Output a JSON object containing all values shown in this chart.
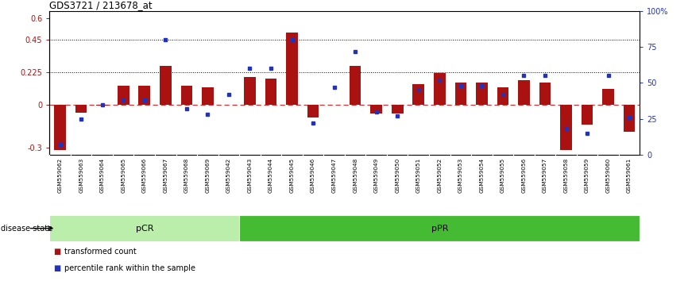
{
  "title": "GDS3721 / 213678_at",
  "samples": [
    "GSM559062",
    "GSM559063",
    "GSM559064",
    "GSM559065",
    "GSM559066",
    "GSM559067",
    "GSM559068",
    "GSM559069",
    "GSM559042",
    "GSM559043",
    "GSM559044",
    "GSM559045",
    "GSM559046",
    "GSM559047",
    "GSM559048",
    "GSM559049",
    "GSM559050",
    "GSM559051",
    "GSM559052",
    "GSM559053",
    "GSM559054",
    "GSM559055",
    "GSM559056",
    "GSM559057",
    "GSM559058",
    "GSM559059",
    "GSM559060",
    "GSM559061"
  ],
  "bar_values": [
    -0.32,
    -0.06,
    -0.01,
    0.13,
    0.13,
    0.27,
    0.13,
    0.12,
    -0.005,
    0.19,
    0.18,
    0.5,
    -0.09,
    -0.005,
    0.27,
    -0.065,
    -0.065,
    0.14,
    0.22,
    0.15,
    0.15,
    0.12,
    0.17,
    0.15,
    -0.32,
    -0.14,
    0.11,
    -0.19
  ],
  "dot_values": [
    7,
    25,
    35,
    38,
    38,
    80,
    32,
    28,
    42,
    60,
    60,
    80,
    22,
    47,
    72,
    30,
    27,
    45,
    52,
    48,
    48,
    42,
    55,
    55,
    18,
    15,
    55,
    26
  ],
  "pCR_count": 9,
  "pPR_count": 19,
  "ylim_left": [
    -0.35,
    0.65
  ],
  "ylim_right": [
    0,
    100
  ],
  "yticks_left": [
    -0.3,
    0.0,
    0.225,
    0.45,
    0.6
  ],
  "ytick_labels_left": [
    "-0.3",
    "0",
    "0.225",
    "0.45",
    "0.6"
  ],
  "yticks_right": [
    0,
    25,
    50,
    75,
    100
  ],
  "ytick_labels_right": [
    "0",
    "25",
    "50",
    "75",
    "100%"
  ],
  "hline_y": [
    0.225,
    0.45
  ],
  "bar_color": "#aa1111",
  "dot_color": "#2233bb",
  "bar_width": 0.55,
  "pCR_color": "#bbeeaa",
  "pPR_color": "#44bb33",
  "label_strip_color": "#cccccc",
  "zero_line_color": "#cc3333",
  "legend_bar_label": "transformed count",
  "legend_dot_label": "percentile rank within the sample",
  "disease_state_label": "disease state",
  "pCR_label": "pCR",
  "pPR_label": "pPR"
}
